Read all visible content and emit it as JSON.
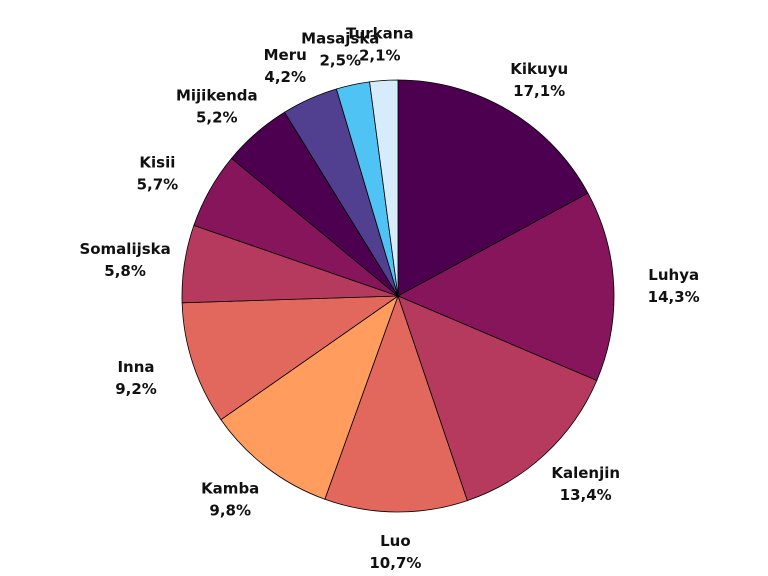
{
  "chart_data": {
    "type": "pie",
    "title": "",
    "slices": [
      {
        "label": "Kikuyu",
        "value": 17.1,
        "value_label": "17,1%",
        "color": "#4d0050"
      },
      {
        "label": "Luhya",
        "value": 14.3,
        "value_label": "14,3%",
        "color": "#86155c"
      },
      {
        "label": "Kalenjin",
        "value": 13.4,
        "value_label": "13,4%",
        "color": "#b63a5e"
      },
      {
        "label": "Luo",
        "value": 10.7,
        "value_label": "10,7%",
        "color": "#e2685e"
      },
      {
        "label": "Kamba",
        "value": 9.8,
        "value_label": "9,8%",
        "color": "#ff9c5e"
      },
      {
        "label": "Inna",
        "value": 9.2,
        "value_label": "9,2%",
        "color": "#e2685e"
      },
      {
        "label": "Somalijska",
        "value": 5.8,
        "value_label": "5,8%",
        "color": "#b63a5e"
      },
      {
        "label": "Kisii",
        "value": 5.7,
        "value_label": "5,7%",
        "color": "#86155c"
      },
      {
        "label": "Mijikenda",
        "value": 5.2,
        "value_label": "5,2%",
        "color": "#4d0050"
      },
      {
        "label": "Meru",
        "value": 4.2,
        "value_label": "4,2%",
        "color": "#50408f"
      },
      {
        "label": "Masajska",
        "value": 2.5,
        "value_label": "2,5%",
        "color": "#4ec3f4"
      },
      {
        "label": "Turkana",
        "value": 2.1,
        "value_label": "2,1%",
        "color": "#d6ecfa"
      }
    ]
  }
}
